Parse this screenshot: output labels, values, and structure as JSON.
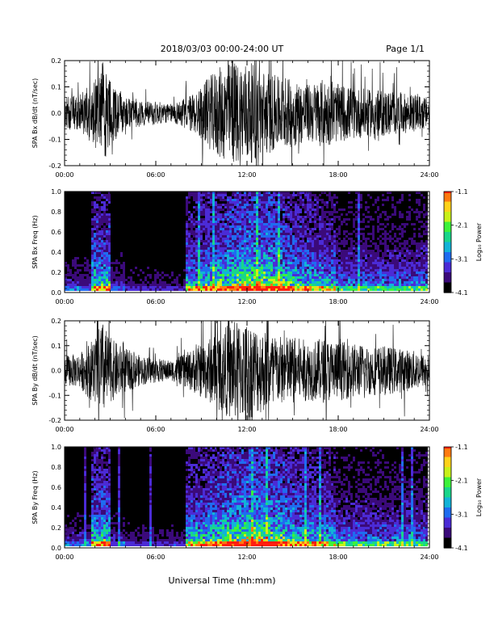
{
  "header": {
    "title": "2018/03/03  00:00-24:00 UT",
    "page": "Page 1/1"
  },
  "xlabel": "Universal Time (hh:mm)",
  "colorbar": {
    "label": "Log₁₀ Power",
    "ticks": [
      "-1.1",
      "-2.1",
      "-3.1",
      "-4.1"
    ]
  },
  "colors": {
    "trace": "#000000",
    "spectrogram_scale": [
      "#000000",
      "#3b0a7a",
      "#4b2bd6",
      "#1f6cf0",
      "#12b3d8",
      "#19d68a",
      "#3df23a",
      "#c8f01a",
      "#ffd21a",
      "#ff7b10",
      "#ff1e0e"
    ]
  },
  "chart_data": [
    {
      "type": "line",
      "ylabel": "SPA Bx dB/dt (nT/sec)",
      "xlim": [
        0,
        24
      ],
      "ylim": [
        -0.2,
        0.2
      ],
      "xticks": [
        "00:00",
        "06:00",
        "12:00",
        "18:00",
        "24:00"
      ],
      "yticks": [
        "0.2",
        "0.1",
        "0.0",
        "-0.1",
        "-0.2"
      ],
      "envelope_x_hours": [
        0,
        1,
        2,
        2.5,
        3,
        4,
        5,
        6,
        7,
        8,
        9,
        10,
        11,
        12,
        13,
        14,
        15,
        16,
        17,
        18,
        19,
        20,
        21,
        22,
        23,
        24
      ],
      "envelope_amplitude": [
        0.06,
        0.07,
        0.13,
        0.2,
        0.12,
        0.07,
        0.05,
        0.045,
        0.035,
        0.06,
        0.1,
        0.17,
        0.2,
        0.2,
        0.17,
        0.14,
        0.13,
        0.11,
        0.13,
        0.11,
        0.1,
        0.09,
        0.09,
        0.08,
        0.07,
        0.06
      ]
    },
    {
      "type": "heatmap",
      "ylabel": "SPA Bx Freq (Hz)",
      "xlim": [
        0,
        24
      ],
      "ylim": [
        0,
        1.0
      ],
      "zlim": [
        -4.1,
        -1.1
      ],
      "xticks": [
        "00:00",
        "06:00",
        "12:00",
        "18:00",
        "24:00"
      ],
      "yticks": [
        "1.0",
        "0.8",
        "0.6",
        "0.4",
        "0.2",
        "0.0"
      ]
    },
    {
      "type": "line",
      "ylabel": "SPA By dB/dt (nT/sec)",
      "xlim": [
        0,
        24
      ],
      "ylim": [
        -0.2,
        0.2
      ],
      "xticks": [
        "00:00",
        "06:00",
        "12:00",
        "18:00",
        "24:00"
      ],
      "yticks": [
        "0.2",
        "0.1",
        "0.0",
        "-0.1",
        "-0.2"
      ],
      "envelope_x_hours": [
        0,
        1,
        2,
        2.5,
        3,
        4,
        5,
        6,
        7,
        8,
        9,
        10,
        11,
        12,
        13,
        14,
        15,
        16,
        17,
        18,
        19,
        20,
        21,
        22,
        23,
        24
      ],
      "envelope_amplitude": [
        0.06,
        0.07,
        0.14,
        0.2,
        0.13,
        0.09,
        0.06,
        0.05,
        0.04,
        0.07,
        0.11,
        0.15,
        0.2,
        0.2,
        0.17,
        0.14,
        0.14,
        0.12,
        0.13,
        0.12,
        0.11,
        0.1,
        0.1,
        0.09,
        0.08,
        0.06
      ]
    },
    {
      "type": "heatmap",
      "ylabel": "SPA By Freq (Hz)",
      "xlim": [
        0,
        24
      ],
      "ylim": [
        0,
        1.0
      ],
      "zlim": [
        -4.1,
        -1.1
      ],
      "xticks": [
        "00:00",
        "06:00",
        "12:00",
        "18:00",
        "24:00"
      ],
      "yticks": [
        "1.0",
        "0.8",
        "0.6",
        "0.4",
        "0.2",
        "0.0"
      ]
    }
  ]
}
